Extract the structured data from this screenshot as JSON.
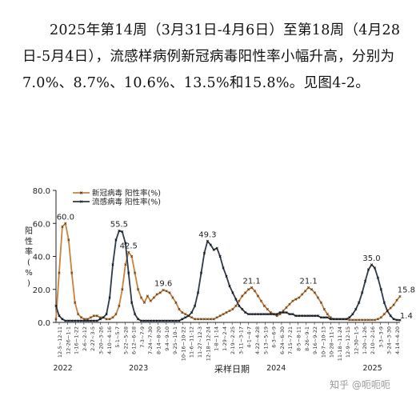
{
  "paragraph": {
    "text": "2025年第14周（3月31日-4月6日）至第18周（4月28日-5月4日），流感样病例新冠病毒阳性率小幅升高，分别为7.0%、8.7%、10.6%、13.5%和15.8%。见图4-2。"
  },
  "watermark": "知乎 @呃呃呃",
  "colors": {
    "covid": "#c8823c",
    "flu": "#2d3a4a"
  },
  "chart_data": {
    "type": "line",
    "xlabel": "采样日期",
    "ylabel": "阳性率(%)",
    "ylim": [
      0,
      80
    ],
    "yticks": [
      "0.0",
      "20.0",
      "40.0",
      "60.0",
      "80.0"
    ],
    "grid": false,
    "legend": "top-left",
    "year_labels": [
      "2022",
      "2023",
      "2024",
      "2025"
    ],
    "x_tick_labels": [
      "12-5~12-11",
      "12-26~1-1",
      "1-16~1-22",
      "2-6~2-12",
      "2-27~3-5",
      "3-20~3-26",
      "4-10~4-16",
      "5-1~5-7",
      "5-22~5-28",
      "6-12~6-18",
      "7-3~7-9",
      "7-24~7-30",
      "8-14~8-20",
      "9-4~9-10",
      "9-25~10-1",
      "10-16~10-22",
      "11-6~11-12",
      "11-27~12-3",
      "12-18~12-24",
      "1-8~1-14",
      "1-29~2-4",
      "2-19~2-25",
      "3-11~3-17",
      "4-1~4-7",
      "4-22~4-28",
      "5-13~5-19",
      "6-3~6-9",
      "6-24~6-30",
      "7-15~7-21",
      "8-5~8-11",
      "8-26~9-1",
      "9-16~9-22",
      "10-7~10-13",
      "10-28~11-3",
      "11-18~11-24",
      "12-9~12-15",
      "12-30~1-5",
      "1-20~1-26",
      "2-10~2-16",
      "3-3~3-9",
      "3-24~3-30",
      "4-14~4-20"
    ],
    "series": [
      {
        "name": "新冠病毒 阳性率(%)",
        "values": [
          2,
          30,
          58,
          60,
          50,
          30,
          12,
          5,
          3,
          2,
          2,
          3,
          4,
          4,
          3,
          3,
          2,
          2,
          3,
          5,
          10,
          20,
          35,
          42.5,
          40,
          30,
          20,
          15,
          12,
          16,
          13,
          15,
          17,
          18,
          19.6,
          19,
          18,
          15,
          12,
          8,
          6,
          5,
          4,
          3,
          2,
          2,
          2,
          2,
          2,
          2,
          2,
          3,
          4,
          5,
          6,
          7,
          8,
          10,
          13,
          16,
          18,
          20,
          21.1,
          19,
          16,
          13,
          10,
          8,
          6,
          5,
          4,
          5,
          7,
          9,
          11,
          13,
          14,
          15,
          17,
          19,
          21.1,
          20,
          18,
          15,
          12,
          8,
          5,
          3,
          2,
          2,
          2,
          2,
          2,
          1.5,
          1.5,
          1.5,
          1.5,
          1.5,
          1.5,
          1.5,
          1.5,
          1.5,
          2,
          3,
          5,
          7,
          8.7,
          10.6,
          13.5,
          15.8
        ]
      },
      {
        "name": "流感病毒 阳性率(%)",
        "values": [
          10,
          4,
          2,
          1,
          1,
          1,
          1,
          1,
          1,
          1,
          1,
          1,
          1,
          1,
          2,
          3,
          5,
          15,
          35,
          50,
          55.5,
          55,
          48,
          30,
          12,
          5,
          2,
          1,
          1,
          1,
          1,
          1,
          1,
          1,
          1,
          1,
          1,
          1,
          1,
          1,
          2,
          3,
          4,
          6,
          10,
          18,
          30,
          42,
          49.3,
          47,
          44,
          45,
          40,
          33,
          28,
          22,
          18,
          14,
          10,
          8,
          6,
          5,
          5,
          5,
          5,
          5,
          5,
          5,
          5,
          5,
          5,
          6,
          6,
          6,
          5,
          5,
          4,
          4,
          4,
          4,
          4,
          4,
          4,
          4,
          3,
          3,
          3,
          2,
          2,
          2,
          2,
          2,
          2,
          3,
          5,
          8,
          12,
          18,
          25,
          32,
          35,
          33,
          27,
          20,
          12,
          7,
          4,
          2,
          1.5,
          1.4
        ]
      }
    ],
    "annotations": [
      {
        "text": "60.0",
        "series": 0,
        "x": 3,
        "y": 60.0
      },
      {
        "text": "55.5",
        "series": 1,
        "x": 20,
        "y": 55.5
      },
      {
        "text": "42.5",
        "series": 0,
        "x": 23,
        "y": 42.5
      },
      {
        "text": "19.6",
        "series": 0,
        "x": 34,
        "y": 19.6
      },
      {
        "text": "49.3",
        "series": 1,
        "x": 48,
        "y": 49.3
      },
      {
        "text": "21.1",
        "series": 0,
        "x": 62,
        "y": 21.1
      },
      {
        "text": "21.1",
        "series": 0,
        "x": 80,
        "y": 21.1
      },
      {
        "text": "35.0",
        "series": 1,
        "x": 100,
        "y": 35.0
      },
      {
        "text": "15.8",
        "series": 0,
        "x": 111,
        "y": 15.8
      },
      {
        "text": "1.4",
        "series": 1,
        "x": 111,
        "y": 1.4
      }
    ]
  }
}
